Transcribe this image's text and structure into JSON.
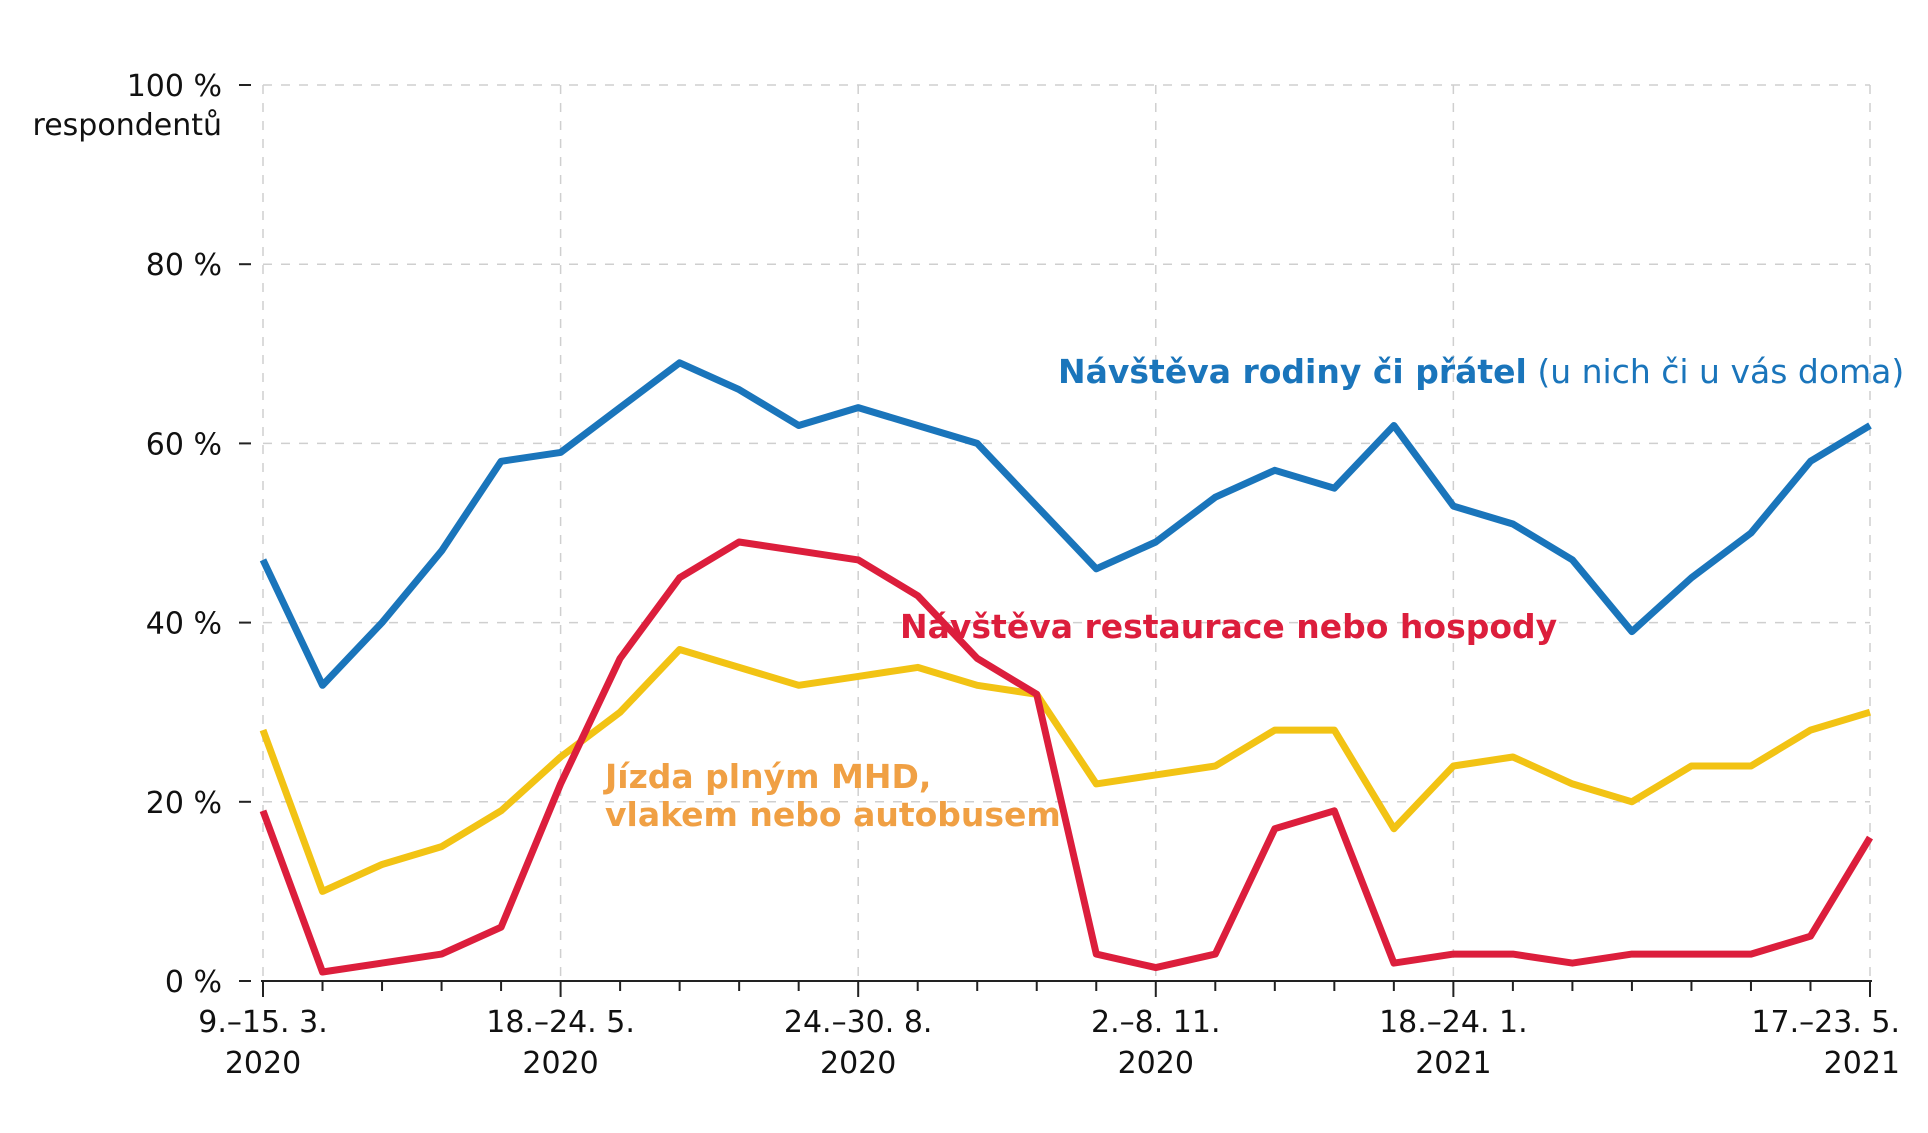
{
  "chart_data": {
    "type": "line",
    "title": "",
    "xlabel": "",
    "ylabel": "respondentů",
    "ylim": [
      0,
      100
    ],
    "grid": true,
    "y_ticks": [
      {
        "value": 0,
        "label": "0 %"
      },
      {
        "value": 20,
        "label": "20 %"
      },
      {
        "value": 40,
        "label": "40 %"
      },
      {
        "value": 60,
        "label": "60 %"
      },
      {
        "value": 80,
        "label": "80 %"
      },
      {
        "value": 100,
        "label": "100 %"
      }
    ],
    "y_unit_label": "respondentů",
    "x_ticks": [
      {
        "index": 0,
        "line1": "9.–15. 3.",
        "line2": "2020"
      },
      {
        "index": 5,
        "line1": "18.–24. 5.",
        "line2": "2020"
      },
      {
        "index": 10,
        "line1": "24.–30. 8.",
        "line2": "2020"
      },
      {
        "index": 15,
        "line1": "2.–8. 11.",
        "line2": "2020"
      },
      {
        "index": 20,
        "line1": "18.–24. 1.",
        "line2": "2021"
      },
      {
        "index": 27,
        "line1": "17.–23. 5.",
        "line2": "2021"
      }
    ],
    "point_count": 28,
    "series": [
      {
        "name": "Návštěva rodiny či přátel (u nich či u vás doma)",
        "color": "#1a75bb",
        "values": [
          47,
          33,
          40,
          48,
          58,
          59,
          64,
          69,
          66,
          62,
          64,
          62,
          60,
          53,
          46,
          49,
          54,
          57,
          55,
          62,
          53,
          51,
          47,
          39,
          45,
          50,
          58,
          62
        ]
      },
      {
        "name": "Jízda plným MHD, vlakem nebo autobusem",
        "color": "#f2c314",
        "values": [
          28,
          10,
          13,
          15,
          19,
          25,
          30,
          37,
          35,
          33,
          34,
          35,
          33,
          32,
          22,
          23,
          24,
          28,
          28,
          17,
          24,
          25,
          22,
          20,
          24,
          24,
          28,
          30
        ]
      },
      {
        "name": "Návštěva restaurace nebo hospody",
        "color": "#dc1e3c",
        "values": [
          19,
          1,
          2,
          3,
          6,
          22,
          36,
          45,
          49,
          48,
          47,
          43,
          36,
          32,
          3,
          1.5,
          3,
          17,
          19,
          2,
          3,
          3,
          2,
          3,
          3,
          3,
          5,
          16
        ]
      }
    ],
    "annotations": [
      {
        "series": 0,
        "bold": "Návštěva rodiny či přátel",
        "normal": " (u nich či u vás doma)",
        "color": "#1a75bb"
      },
      {
        "series": 2,
        "bold": "Návštěva restaurace nebo hospody",
        "normal": "",
        "color": "#dc1e3c"
      },
      {
        "series": 1,
        "line1": "Jízda plným MHD,",
        "line2": "vlakem nebo autobusem",
        "color": "#f0a044"
      }
    ]
  }
}
